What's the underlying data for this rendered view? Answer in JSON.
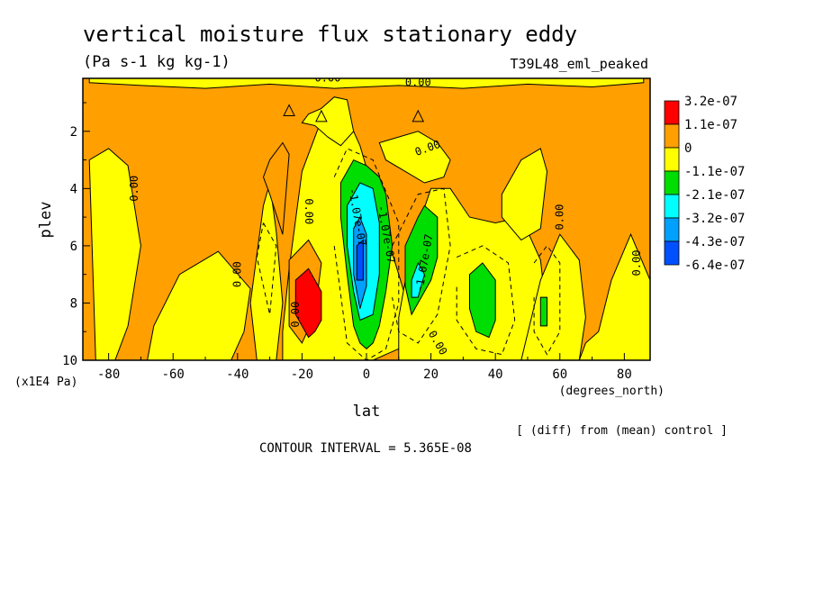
{
  "chart_data": {
    "type": "heatmap",
    "title": "vertical moisture flux stationary eddy",
    "units": "(Pa s-1 kg kg-1)",
    "experiment": "T39L48_eml_peaked",
    "xlabel": "lat",
    "xunits": "(degrees_north)",
    "ylabel": "plev",
    "yunits": "(x1E4 Pa)",
    "xlim": [
      -88,
      88
    ],
    "ylim": [
      10,
      0.15
    ],
    "x_ticks": [
      -80,
      -60,
      -40,
      -20,
      0,
      20,
      40,
      60,
      80
    ],
    "y_ticks": [
      2,
      4,
      6,
      8,
      10
    ],
    "x_tick_labels": [
      "-80",
      "-60",
      "-40",
      "-20",
      "0",
      "20",
      "40",
      "60",
      "80"
    ],
    "y_tick_labels": [
      "2",
      "4",
      "6",
      "8",
      "10"
    ],
    "legend": {
      "placement": "right",
      "labels": [
        "3.2e-07",
        "1.1e-07",
        "0",
        "-1.1e-07",
        "-2.1e-07",
        "-3.2e-07",
        "-4.3e-07",
        "-6.4e-07"
      ],
      "colors": [
        "#ff0000",
        "#ff9f00",
        "#ffff00",
        "#00dd00",
        "#00ffff",
        "#00a0ff",
        "#0050ff"
      ]
    },
    "background_color": "#ff9f00",
    "regions": [
      {
        "level": "yellow",
        "x": [
          -84,
          -78,
          -74,
          -70,
          -74,
          -80,
          -86
        ],
        "y": [
          10,
          10,
          8.8,
          6,
          3.2,
          2.6,
          3.0
        ]
      },
      {
        "level": "yellow",
        "x": [
          -68,
          -60,
          -50,
          -42,
          -38,
          -36,
          -46,
          -58,
          -66
        ],
        "y": [
          10,
          10,
          10,
          10,
          9.0,
          7.5,
          6.2,
          7.0,
          8.8
        ]
      },
      {
        "level": "yellow",
        "x": [
          -34,
          -28,
          -26,
          -28,
          -30,
          -32,
          -36
        ],
        "y": [
          10,
          10,
          8.0,
          5.5,
          3.8,
          4.6,
          8.0
        ]
      },
      {
        "level": "yellow",
        "x": [
          -26,
          -18,
          -10,
          -2,
          2,
          6,
          10,
          14,
          10,
          4,
          -2,
          -8,
          -14,
          -20,
          -24,
          -26
        ],
        "y": [
          10,
          10,
          10,
          10,
          10,
          9.8,
          9.6,
          8.5,
          7.0,
          4.8,
          2.5,
          1.0,
          1.6,
          3.4,
          6.8,
          9.0
        ]
      },
      {
        "level": "yellow",
        "x": [
          -14,
          -10,
          -6,
          -4,
          -8,
          -12,
          -16,
          -20,
          -18
        ],
        "y": [
          1.2,
          0.8,
          0.9,
          2.0,
          2.5,
          2.2,
          1.8,
          1.7,
          1.4
        ]
      },
      {
        "level": "yellow",
        "x": [
          4,
          10,
          16,
          22,
          26,
          24,
          18,
          12,
          6
        ],
        "y": [
          2.4,
          2.2,
          2.0,
          2.4,
          3.0,
          3.6,
          3.8,
          3.4,
          3.0
        ]
      },
      {
        "level": "yellow",
        "x": [
          10,
          18,
          28,
          36,
          42,
          46,
          50,
          54,
          56,
          54,
          48,
          40,
          32,
          26,
          20,
          14,
          10
        ],
        "y": [
          10,
          10,
          10,
          10,
          10,
          10,
          10,
          10,
          8.5,
          6.5,
          5.0,
          5.2,
          5.0,
          4.0,
          4.0,
          6.0,
          8.5
        ]
      },
      {
        "level": "yellow",
        "x": [
          42,
          48,
          54,
          56,
          54,
          48,
          42
        ],
        "y": [
          4.2,
          3.0,
          2.6,
          3.4,
          5.4,
          5.8,
          5.0
        ]
      },
      {
        "level": "yellow",
        "x": [
          48,
          54,
          60,
          66,
          68,
          66,
          60,
          54
        ],
        "y": [
          10,
          10,
          10,
          10,
          8.5,
          6.5,
          5.6,
          7.2
        ]
      },
      {
        "level": "yellow",
        "x": [
          66,
          72,
          76,
          80,
          84,
          88,
          88,
          82,
          76,
          72,
          68
        ],
        "y": [
          10,
          10,
          10,
          10,
          10,
          10,
          7.2,
          5.6,
          7.2,
          9.0,
          9.4
        ]
      },
      {
        "level": "yellow",
        "x": [
          -86,
          -70,
          -50,
          -30,
          -10,
          10,
          30,
          50,
          70,
          86,
          86,
          70,
          50,
          30,
          10,
          -10,
          -30,
          -50,
          -70,
          -86
        ],
        "y": [
          0.15,
          0.15,
          0.15,
          0.15,
          0.15,
          0.15,
          0.15,
          0.15,
          0.15,
          0.15,
          0.3,
          0.45,
          0.35,
          0.5,
          0.4,
          0.5,
          0.35,
          0.5,
          0.4,
          0.3
        ]
      },
      {
        "level": "orange",
        "x": [
          -30,
          -26,
          -24,
          -26,
          -30,
          -32
        ],
        "y": [
          3.0,
          2.4,
          2.8,
          5.6,
          4.2,
          3.6
        ]
      },
      {
        "level": "orange",
        "x": [
          -24,
          -18,
          -14,
          -16,
          -20,
          -24
        ],
        "y": [
          6.5,
          5.8,
          6.6,
          8.4,
          9.4,
          8.8
        ]
      },
      {
        "level": "red",
        "x": [
          -22,
          -18,
          -14,
          -14,
          -16,
          -18,
          -22
        ],
        "y": [
          7.2,
          6.8,
          7.6,
          8.6,
          9.0,
          9.2,
          8.4
        ]
      },
      {
        "level": "green",
        "x": [
          -8,
          -4,
          0,
          4,
          6,
          8,
          6,
          4,
          2,
          0,
          -2,
          -4,
          -6,
          -8
        ],
        "y": [
          3.8,
          3.0,
          3.2,
          3.6,
          4.2,
          6.0,
          7.6,
          8.8,
          9.4,
          9.6,
          9.4,
          8.8,
          7.0,
          5.0
        ]
      },
      {
        "level": "cyan",
        "x": [
          -6,
          -2,
          2,
          4,
          4,
          2,
          -2,
          -4,
          -6
        ],
        "y": [
          4.6,
          3.8,
          4.0,
          5.2,
          7.0,
          8.4,
          8.6,
          7.6,
          6.0
        ]
      },
      {
        "level": "blue",
        "x": [
          -4,
          -2,
          0,
          0,
          -2,
          -4
        ],
        "y": [
          5.4,
          5.0,
          5.6,
          7.4,
          8.2,
          7.0
        ]
      },
      {
        "level": "blue2",
        "x": [
          -3,
          -1,
          -1,
          -3
        ],
        "y": [
          6.0,
          5.8,
          7.2,
          7.2
        ]
      },
      {
        "level": "green",
        "x": [
          12,
          16,
          18,
          22,
          22,
          20,
          16,
          14,
          12
        ],
        "y": [
          6.0,
          5.0,
          4.6,
          5.0,
          6.4,
          7.2,
          8.0,
          8.4,
          7.4
        ]
      },
      {
        "level": "cyan",
        "x": [
          14,
          16,
          18,
          16,
          14
        ],
        "y": [
          7.2,
          6.6,
          7.0,
          7.8,
          7.8
        ]
      },
      {
        "level": "green",
        "x": [
          32,
          36,
          40,
          40,
          38,
          34,
          32
        ],
        "y": [
          7.0,
          6.6,
          7.2,
          8.6,
          9.2,
          9.0,
          8.2
        ]
      },
      {
        "level": "green",
        "x": [
          54,
          56,
          56,
          54
        ],
        "y": [
          7.8,
          7.8,
          8.8,
          8.8
        ]
      }
    ],
    "dashed_contours": [
      {
        "x": [
          -32,
          -28,
          -30,
          -34,
          -32
        ],
        "y": [
          5.2,
          6.0,
          8.4,
          6.4,
          5.2
        ]
      },
      {
        "x": [
          -10,
          -6,
          2,
          10,
          10,
          6,
          0,
          -6,
          -10
        ],
        "y": [
          3.6,
          2.6,
          3.0,
          5.2,
          8.0,
          9.6,
          10,
          9.4,
          6.0
        ]
      },
      {
        "x": [
          8,
          16,
          24,
          26,
          22,
          16,
          10,
          8
        ],
        "y": [
          6.0,
          4.2,
          4.0,
          6.0,
          8.4,
          9.4,
          9.0,
          7.8
        ]
      },
      {
        "x": [
          28,
          36,
          44,
          46,
          42,
          34,
          28,
          28
        ],
        "y": [
          6.4,
          6.0,
          6.6,
          8.6,
          9.8,
          9.6,
          8.6,
          7.4
        ]
      },
      {
        "x": [
          52,
          56,
          60,
          60,
          56,
          52,
          52
        ],
        "y": [
          6.6,
          6.0,
          6.6,
          9.0,
          9.8,
          9.0,
          7.8
        ]
      }
    ],
    "contour_labels": [
      {
        "text": "0.00",
        "x": -72,
        "y": 4.0,
        "angle": -90
      },
      {
        "text": "0.00",
        "x": -40,
        "y": 7.0,
        "angle": -90
      },
      {
        "text": "0.00",
        "x": -22,
        "y": 8.4,
        "angle": -90
      },
      {
        "text": "0.00",
        "x": -18,
        "y": 4.8,
        "angle": 90
      },
      {
        "text": "0.00",
        "x": -12,
        "y": 0.15,
        "angle": 0
      },
      {
        "text": "0.00",
        "x": 16,
        "y": 0.3,
        "angle": 0
      },
      {
        "text": "0.00",
        "x": 19,
        "y": 2.6,
        "angle": -20
      },
      {
        "text": "0.00",
        "x": 22,
        "y": 9.4,
        "angle": 60
      },
      {
        "text": "0.00",
        "x": 60,
        "y": 5.0,
        "angle": -90
      },
      {
        "text": "0.00",
        "x": 84,
        "y": 6.6,
        "angle": -90
      },
      {
        "text": "-1.07e-07",
        "x": -3,
        "y": 5.0,
        "angle": 80
      },
      {
        "text": "-1.07e-07",
        "x": 18,
        "y": 6.6,
        "angle": -80
      },
      {
        "text": "-1.07e-07",
        "x": 6,
        "y": 5.6,
        "angle": 80
      }
    ],
    "triangle_markers": [
      {
        "x": -24,
        "y": 1.3
      },
      {
        "x": -14,
        "y": 1.5
      },
      {
        "x": 16,
        "y": 1.5
      }
    ]
  },
  "annotations": {
    "diff_note": "[ (diff) from (mean) control ]",
    "contour_interval": "CONTOUR INTERVAL = 5.365E-08"
  }
}
